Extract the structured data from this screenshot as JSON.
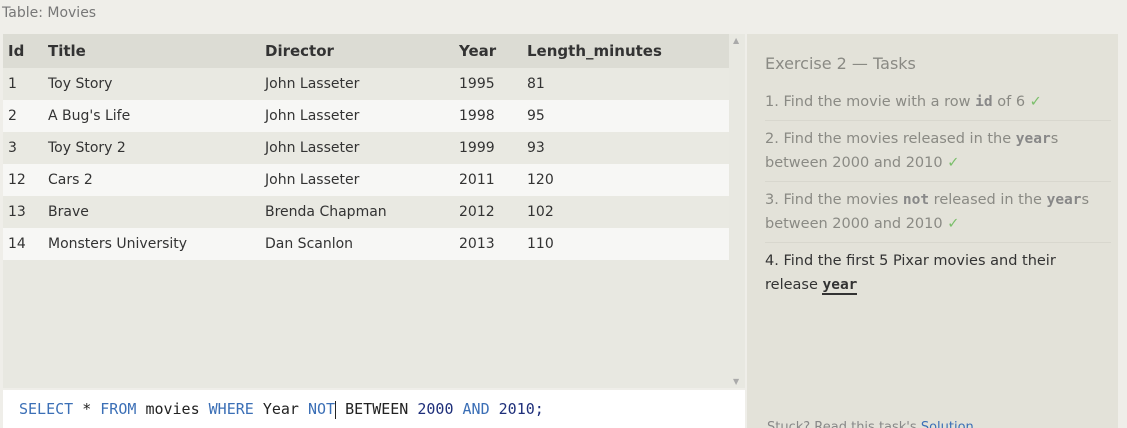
{
  "table_label": "Table: Movies",
  "table": {
    "columns": [
      "Id",
      "Title",
      "Director",
      "Year",
      "Length_minutes"
    ],
    "rows": [
      [
        1,
        "Toy Story",
        "John Lasseter",
        1995,
        81
      ],
      [
        2,
        "A Bug's Life",
        "John Lasseter",
        1998,
        95
      ],
      [
        3,
        "Toy Story 2",
        "John Lasseter",
        1999,
        93
      ],
      [
        12,
        "Cars 2",
        "John Lasseter",
        2011,
        120
      ],
      [
        13,
        "Brave",
        "Brenda Chapman",
        2012,
        102
      ],
      [
        14,
        "Monsters University",
        "Dan Scanlon",
        2013,
        110
      ]
    ]
  },
  "query": [
    "SELECT",
    "*",
    "FROM",
    "movies",
    "WHERE",
    "Year",
    "NOT",
    "BETWEEN",
    "2000",
    "AND",
    "2010;"
  ],
  "exercise_title": "Exercise 2 — Tasks",
  "tasks": [
    [
      "1. Find the movie with a row",
      "id",
      "of 6"
    ],
    [
      "2. Find the movies released in the",
      "year",
      "s between 2000 and 2010"
    ],
    [
      "3. Find the movies",
      "not",
      "released in the",
      "year",
      "s between 2000 and 2010"
    ],
    [
      "4. Find the first 5 Pixar movies and their release",
      "year"
    ]
  ],
  "help": {
    "text": "Stuck? Read this task's",
    "link": "Solution"
  }
}
